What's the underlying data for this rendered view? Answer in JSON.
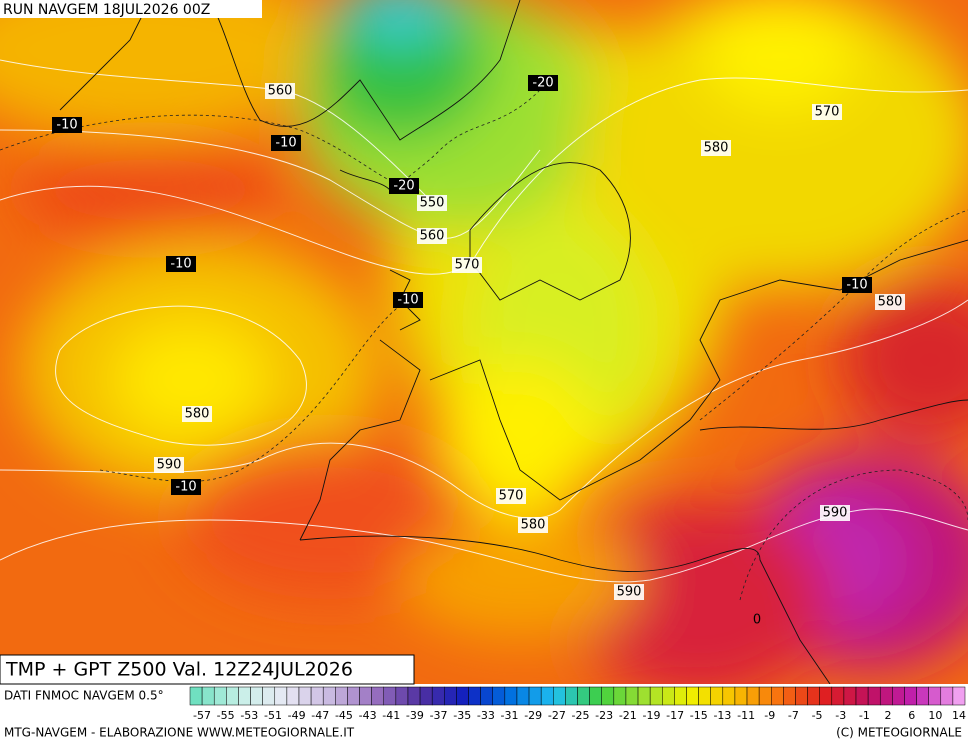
{
  "header": {
    "run": "RUN NAVGEM 18JUL2026 00Z",
    "title": "TMP + GPT Z500 Val. 12Z24JUL2026"
  },
  "height_labels": [
    "560",
    "550",
    "560",
    "570",
    "580",
    "570",
    "580",
    "580",
    "590",
    "570",
    "580",
    "590",
    "590"
  ],
  "temperature_labels": [
    "-10",
    "-10",
    "-20",
    "-20",
    "-10",
    "-10",
    "-10",
    "-10",
    "0"
  ],
  "colorbar": {
    "source": "DATI FNMOC NAVGEM 0.5°",
    "labels": [
      -57,
      -55,
      -53,
      -51,
      -49,
      -47,
      -45,
      -43,
      -41,
      -39,
      -37,
      -35,
      -33,
      -31,
      -29,
      -27,
      -25,
      -23,
      -21,
      -19,
      -17,
      -15,
      -13,
      -11,
      -9,
      -7,
      -5,
      -3,
      -1,
      2,
      6,
      10,
      14
    ]
  },
  "footer": {
    "left": "MTG-NAVGEM - ELABORAZIONE WWW.METEOGIORNALE.IT",
    "right": "(C) METEOGIORNALE"
  }
}
